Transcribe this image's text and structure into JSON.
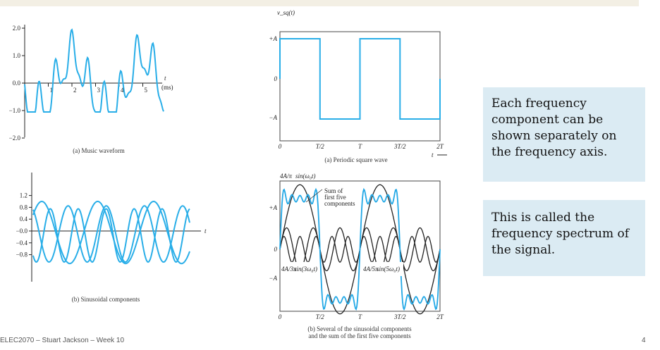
{
  "slide": {
    "callout_1": "Each frequency component can be shown separately on the frequency axis.",
    "callout_2": "This is called the frequency spectrum of the signal.",
    "footer": "ELEC2070 – Stuart Jackson – Week 10",
    "page_number": "4"
  },
  "colors": {
    "curve": "#29aee8",
    "sum_curve": "#22a8e6",
    "dark_curve": "#222222",
    "callout_bg": "#dbebf3"
  },
  "chart_data": [
    {
      "type": "line",
      "caption": "(a) Music waveform",
      "y_ticks": [
        "2.0",
        "1.0",
        "0.0",
        "−1.0",
        "−2.0"
      ],
      "x_ticks": [
        "1",
        "2",
        "3",
        "4",
        "5"
      ],
      "x_axis_label": "t",
      "x_unit": "(ms)",
      "ylim": [
        -2.0,
        2.0
      ],
      "xlim": [
        0,
        6.2
      ]
    },
    {
      "type": "line",
      "caption": "(b) Sinusoidal components",
      "y_ticks": [
        "1.2",
        "0.8",
        "0.4",
        "−0.0",
        "−0.4",
        "−0.8"
      ],
      "x_axis_label": "t",
      "ylim": [
        -1.0,
        1.3
      ]
    },
    {
      "type": "line",
      "caption": "(a) Periodic square wave",
      "y_axis_label": "v_sq(t)",
      "y_ticks": [
        "+A",
        "0",
        "−A"
      ],
      "x_ticks": [
        "0",
        "T/2",
        "T",
        "3T/2",
        "2T"
      ],
      "x_axis_label": "t",
      "x": [
        0,
        0.5,
        0.5,
        1.0,
        1.0,
        1.5,
        1.5,
        2.0
      ],
      "y": [
        1,
        1,
        -1,
        -1,
        1,
        1,
        -1,
        -1
      ]
    },
    {
      "type": "line",
      "caption_line_1": "(b) Several of the sinusoidal components",
      "caption_line_2": "and the sum of the first five components",
      "y_ticks": [
        "+A",
        "0",
        "−A"
      ],
      "x_ticks": [
        "0",
        "T/2",
        "T",
        "3T/2",
        "2T"
      ],
      "annotations": {
        "fundamental": "sin(ω₀t)",
        "fundamental_coef": "4A/π",
        "sum_label": "Sum of first five components",
        "third": "sin(3ω₀t)",
        "third_coef": "4A/3π",
        "fifth": "sin(5ω₀t)",
        "fifth_coef": "4A/5π"
      }
    }
  ]
}
